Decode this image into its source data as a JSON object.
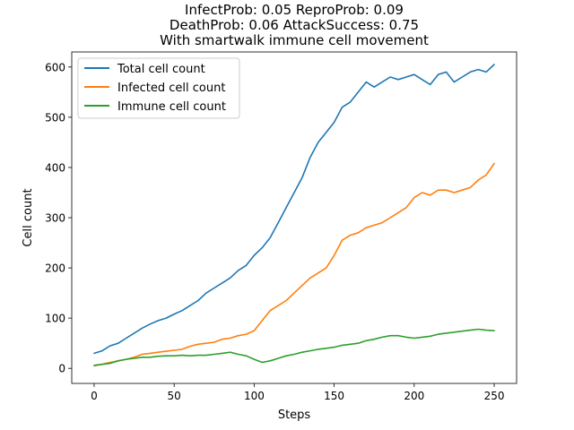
{
  "chart_data": {
    "type": "line",
    "title_lines": [
      "InfectProb: 0.05 ReproProb: 0.09",
      "DeathProb: 0.06 AttackSuccess: 0.75",
      "With smartwalk immune cell movement"
    ],
    "xlabel": "Steps",
    "ylabel": "Cell count",
    "xlim": [
      -14,
      264
    ],
    "ylim": [
      -30,
      630
    ],
    "xticks": [
      0,
      50,
      100,
      150,
      200,
      250
    ],
    "yticks": [
      0,
      100,
      200,
      300,
      400,
      500,
      600
    ],
    "grid": false,
    "legend_position": "top-left",
    "series": [
      {
        "name": "Total cell count",
        "color": "#1f77b4",
        "x": [
          0,
          5,
          10,
          15,
          20,
          25,
          30,
          35,
          40,
          45,
          50,
          55,
          60,
          65,
          70,
          75,
          80,
          85,
          90,
          95,
          100,
          105,
          110,
          115,
          120,
          125,
          130,
          135,
          140,
          145,
          150,
          155,
          160,
          165,
          170,
          175,
          180,
          185,
          190,
          195,
          200,
          205,
          210,
          215,
          220,
          225,
          230,
          235,
          240,
          245,
          250
        ],
        "values": [
          30,
          35,
          45,
          50,
          60,
          70,
          80,
          88,
          95,
          100,
          108,
          115,
          125,
          135,
          150,
          160,
          170,
          180,
          195,
          205,
          225,
          240,
          260,
          290,
          320,
          350,
          380,
          420,
          450,
          470,
          490,
          520,
          530,
          550,
          570,
          560,
          570,
          580,
          575,
          580,
          585,
          575,
          565,
          585,
          590,
          570,
          580,
          590,
          595,
          590,
          605
        ]
      },
      {
        "name": "Infected cell count",
        "color": "#ff7f0e",
        "x": [
          0,
          5,
          10,
          15,
          20,
          25,
          30,
          35,
          40,
          45,
          50,
          55,
          60,
          65,
          70,
          75,
          80,
          85,
          90,
          95,
          100,
          105,
          110,
          115,
          120,
          125,
          130,
          135,
          140,
          145,
          150,
          155,
          160,
          165,
          170,
          175,
          180,
          185,
          190,
          195,
          200,
          205,
          210,
          215,
          220,
          225,
          230,
          235,
          240,
          245,
          250
        ],
        "values": [
          5,
          8,
          12,
          15,
          18,
          22,
          28,
          30,
          32,
          34,
          36,
          38,
          44,
          48,
          50,
          52,
          58,
          60,
          65,
          68,
          75,
          95,
          115,
          125,
          135,
          150,
          165,
          180,
          190,
          200,
          225,
          255,
          265,
          270,
          280,
          285,
          290,
          300,
          310,
          320,
          340,
          350,
          345,
          355,
          355,
          350,
          355,
          360,
          375,
          385,
          408
        ]
      },
      {
        "name": "Immune cell count",
        "color": "#2ca02c",
        "x": [
          0,
          5,
          10,
          15,
          20,
          25,
          30,
          35,
          40,
          45,
          50,
          55,
          60,
          65,
          70,
          75,
          80,
          85,
          90,
          95,
          100,
          105,
          110,
          115,
          120,
          125,
          130,
          135,
          140,
          145,
          150,
          155,
          160,
          165,
          170,
          175,
          180,
          185,
          190,
          195,
          200,
          205,
          210,
          215,
          220,
          225,
          230,
          235,
          240,
          245,
          250
        ],
        "values": [
          6,
          8,
          10,
          15,
          18,
          20,
          22,
          22,
          24,
          25,
          25,
          26,
          25,
          26,
          26,
          28,
          30,
          32,
          28,
          25,
          18,
          12,
          15,
          20,
          25,
          28,
          32,
          35,
          38,
          40,
          42,
          46,
          48,
          50,
          55,
          58,
          62,
          65,
          65,
          62,
          60,
          62,
          64,
          68,
          70,
          72,
          74,
          76,
          78,
          76,
          75
        ]
      }
    ]
  }
}
